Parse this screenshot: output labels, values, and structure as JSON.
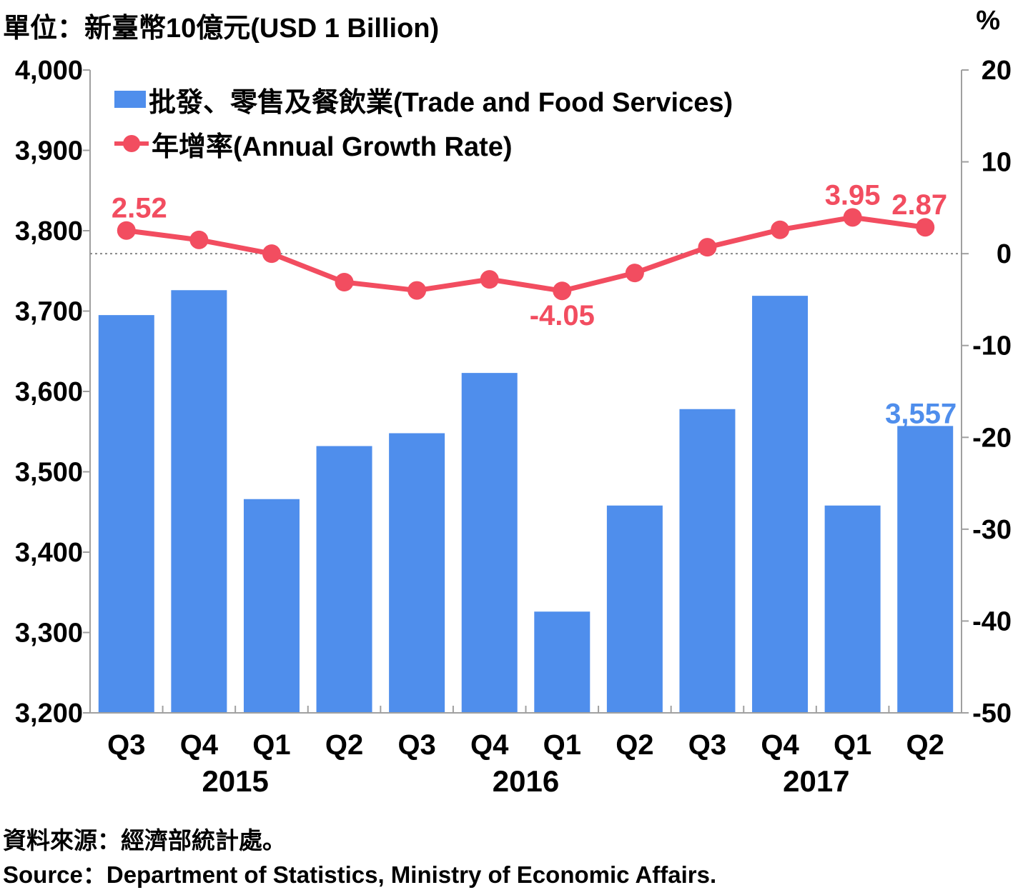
{
  "header": {
    "unit_label": "單位：新臺幣10億元(USD 1 Billion)",
    "right_unit_label": "%"
  },
  "footer": {
    "source_zh": "資料來源：經濟部統計處。",
    "source_en": "Source：Department of Statistics, Ministry of Economic Affairs."
  },
  "colors": {
    "bar": "#4f8eec",
    "line": "#f24d60",
    "axis": "#a0a0a0",
    "zero_line": "#888888"
  },
  "chart_data": {
    "type": "bar",
    "categories": [
      "Q3",
      "Q4",
      "Q1",
      "Q2",
      "Q3",
      "Q4",
      "Q1",
      "Q2",
      "Q3",
      "Q4",
      "Q1",
      "Q2"
    ],
    "year_labels": [
      {
        "label": "2015",
        "index": 2
      },
      {
        "label": "2016",
        "index": 6
      },
      {
        "label": "2017",
        "index": 10
      }
    ],
    "series": [
      {
        "name": "批發、零售及餐飲業(Trade and Food Services)",
        "type": "bar",
        "axis": "left",
        "values": [
          3695,
          3726,
          3466,
          3532,
          3548,
          3623,
          3326,
          3458,
          3578,
          3719,
          3458,
          3557
        ]
      },
      {
        "name": "年增率(Annual Growth Rate)",
        "type": "line",
        "axis": "right",
        "values": [
          2.52,
          1.5,
          0.0,
          -3.1,
          -4.0,
          -2.8,
          -4.05,
          -2.1,
          0.7,
          2.6,
          3.95,
          2.87
        ]
      }
    ],
    "left_axis": {
      "min": 3200,
      "max": 4000,
      "step": 100,
      "ticks": [
        "3,200",
        "3,300",
        "3,400",
        "3,500",
        "3,600",
        "3,700",
        "3,800",
        "3,900",
        "4,000"
      ]
    },
    "right_axis": {
      "min": -50,
      "max": 20,
      "step": 10,
      "ticks": [
        "-50",
        "-40",
        "-30",
        "-20",
        "-10",
        "0",
        "10",
        "20"
      ]
    },
    "data_labels": [
      {
        "series": 1,
        "index": 0,
        "text": "2.52"
      },
      {
        "series": 1,
        "index": 6,
        "text": "-4.05"
      },
      {
        "series": 1,
        "index": 10,
        "text": "3.95"
      },
      {
        "series": 1,
        "index": 11,
        "text": "2.87"
      },
      {
        "series": 0,
        "index": 11,
        "text": "3,557"
      }
    ],
    "legend_position": "top-left",
    "grid": false
  }
}
